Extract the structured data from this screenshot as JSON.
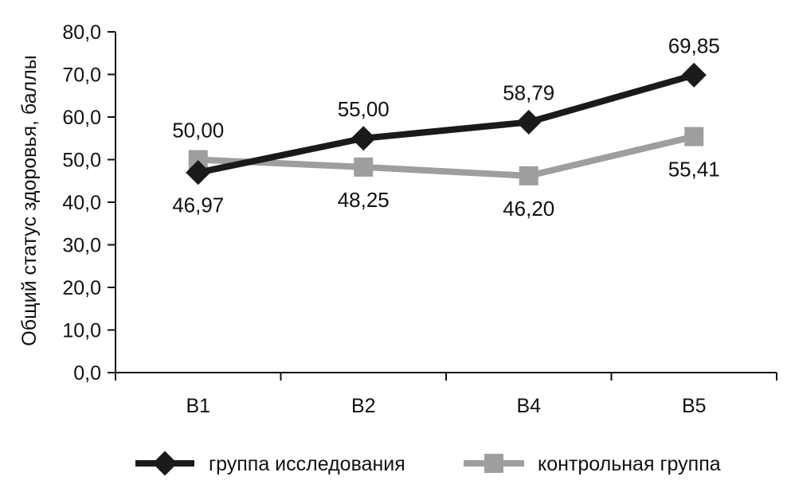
{
  "chart_data": {
    "type": "line",
    "categories": [
      "В1",
      "В2",
      "В4",
      "В5"
    ],
    "ylabel": "Общий статус здоровья, баллы",
    "ylim": [
      0,
      80
    ],
    "yticks": [
      "0,0",
      "10,0",
      "20,0",
      "30,0",
      "40,0",
      "50,0",
      "60,0",
      "70,0",
      "80,0"
    ],
    "grid": false,
    "legend_position": "bottom",
    "series": [
      {
        "name": "группа исследования",
        "values": [
          46.97,
          55.0,
          58.79,
          69.85
        ],
        "labels": [
          "46,97",
          "55,00",
          "58,79",
          "69,85"
        ],
        "color": "#1a1a1a",
        "marker": "diamond"
      },
      {
        "name": "контрольная группа",
        "values": [
          50.0,
          48.25,
          46.2,
          55.41
        ],
        "labels": [
          "50,00",
          "48,25",
          "46,20",
          "55,41"
        ],
        "color": "#9e9e9e",
        "marker": "square"
      }
    ]
  }
}
